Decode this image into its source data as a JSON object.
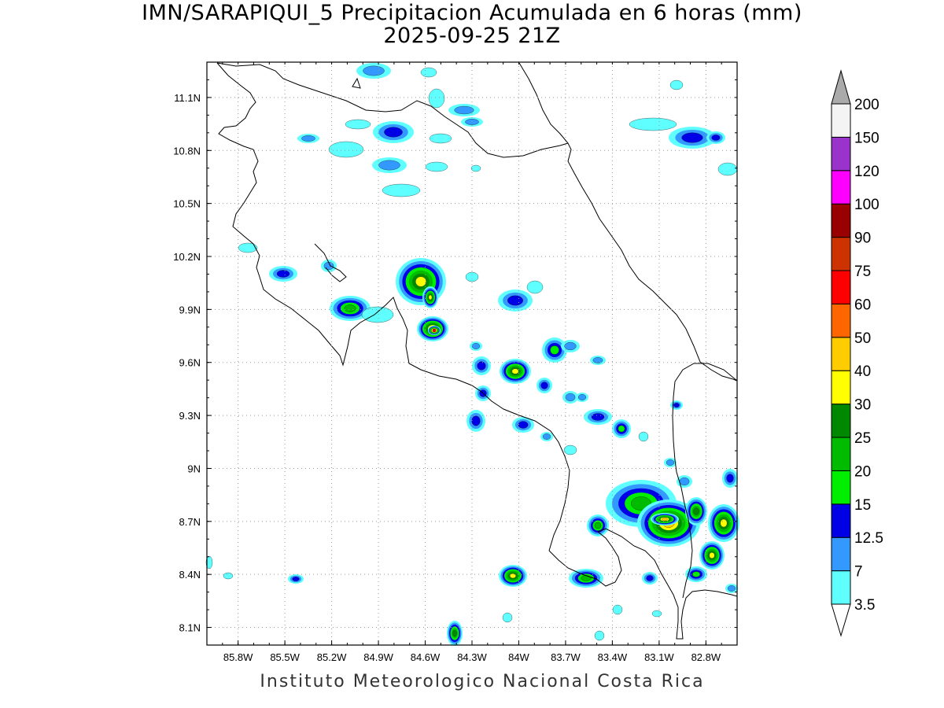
{
  "title": {
    "line1": "IMN/SARAPIQUI_5 Precipitacion Acumulada en 6 horas (mm)",
    "line2": "2025-09-25 21Z"
  },
  "footer": "Instituto Meteorologico Nacional Costa Rica",
  "map": {
    "lon_range": [
      -86.0,
      -82.6
    ],
    "lat_range": [
      8.0,
      11.3
    ],
    "x_ticks": [
      "85.8W",
      "85.5W",
      "85.2W",
      "84.9W",
      "84.6W",
      "84.3W",
      "84W",
      "83.7W",
      "83.4W",
      "83.1W",
      "82.8W"
    ],
    "y_ticks": [
      "11.1N",
      "10.8N",
      "10.5N",
      "10.2N",
      "9.9N",
      "9.6N",
      "9.3N",
      "9N",
      "8.7N",
      "8.4N",
      "8.1N"
    ],
    "grid": "dotted"
  },
  "colorbar": {
    "levels": [
      "3.5",
      "7",
      "12.5",
      "15",
      "20",
      "25",
      "30",
      "40",
      "50",
      "60",
      "75",
      "90",
      "100",
      "120",
      "150",
      "200"
    ],
    "colors": [
      "#ffffff",
      "#5fffff",
      "#3399ff",
      "#0000e6",
      "#00ee00",
      "#00bb00",
      "#008800",
      "#ffff00",
      "#ffcc00",
      "#ff6600",
      "#ff0000",
      "#cc3300",
      "#990000",
      "#ff00ff",
      "#9933cc",
      "#f4f4f4",
      "#aaaaaa"
    ]
  }
}
